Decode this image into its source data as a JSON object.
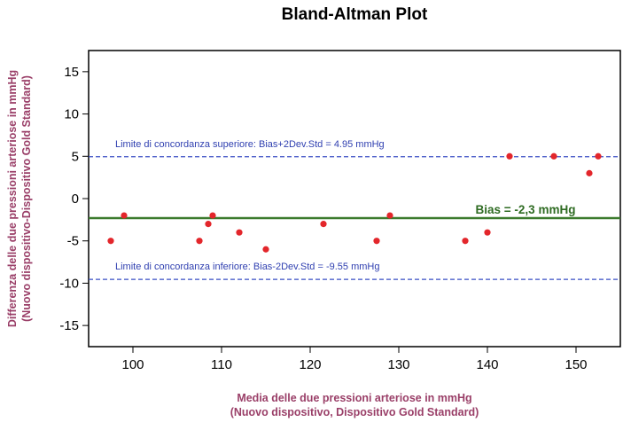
{
  "chart_data": {
    "type": "scatter",
    "title": "Bland-Altman Plot",
    "xlabel": [
      "Media delle due pressioni arteriose in mmHg",
      "(Nuovo dispositivo, Dispositivo Gold Standard)"
    ],
    "ylabel": [
      "Differenza delle due pressioni arteriose in mmHg",
      "(Nuovo dispositivo-Dispositivo Gold Standard)"
    ],
    "xlim": [
      95,
      155
    ],
    "ylim": [
      -17.5,
      17.5
    ],
    "xticks": [
      100,
      110,
      120,
      130,
      140,
      150
    ],
    "yticks": [
      -15,
      -10,
      -5,
      0,
      5,
      10,
      15
    ],
    "points": [
      {
        "x": 97.5,
        "y": -5
      },
      {
        "x": 99,
        "y": -2
      },
      {
        "x": 107.5,
        "y": -5
      },
      {
        "x": 108.5,
        "y": -3
      },
      {
        "x": 109,
        "y": -2
      },
      {
        "x": 112,
        "y": -4
      },
      {
        "x": 115,
        "y": -6
      },
      {
        "x": 121.5,
        "y": -3
      },
      {
        "x": 127.5,
        "y": -5
      },
      {
        "x": 129,
        "y": -2
      },
      {
        "x": 137.5,
        "y": -5
      },
      {
        "x": 140,
        "y": -4
      },
      {
        "x": 142.5,
        "y": 5
      },
      {
        "x": 147.5,
        "y": 5
      },
      {
        "x": 151.5,
        "y": 3
      },
      {
        "x": 152.5,
        "y": 5
      }
    ],
    "lines": [
      {
        "name": "upper",
        "y": 4.95,
        "label": "Limite di concordanza superiore: Bias+2Dev.Std = 4.95 mmHg",
        "style": "dashed"
      },
      {
        "name": "bias",
        "y": -2.3,
        "label": "Bias = -2,3 mmHg",
        "style": "solid"
      },
      {
        "name": "lower",
        "y": -9.55,
        "label": "Limite di concordanza inferiore: Bias-2Dev.Std = -9.55 mmHg",
        "style": "dashed"
      }
    ],
    "grid": false,
    "colors": {
      "point": "#e3262b",
      "limit_line": "#3a4fc4",
      "limit_text": "#2f3fb0",
      "bias_line": "#3b7a2d",
      "bias_text": "#2e6b22",
      "axis_label": "#9a3f68"
    }
  }
}
